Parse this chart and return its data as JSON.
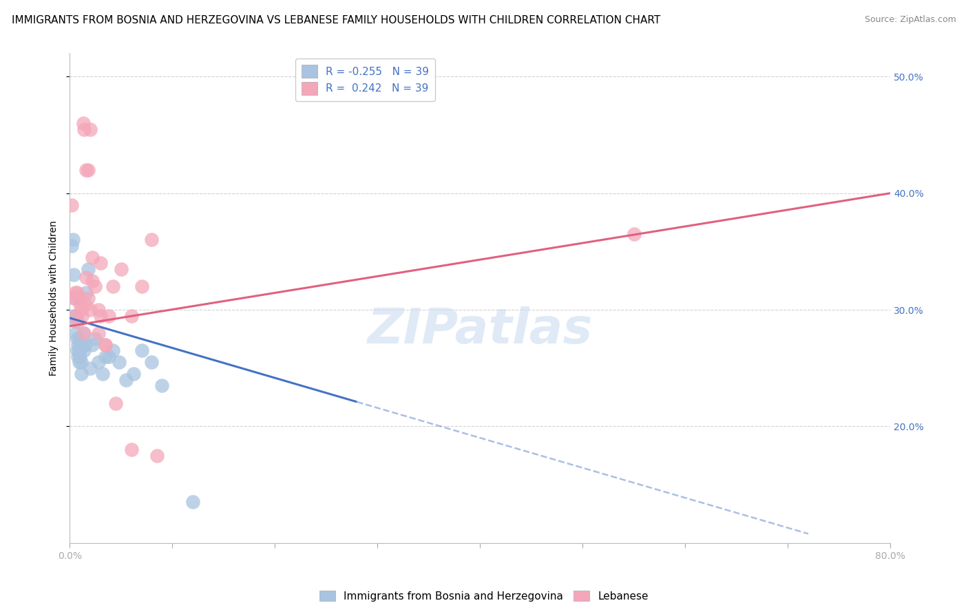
{
  "title": "IMMIGRANTS FROM BOSNIA AND HERZEGOVINA VS LEBANESE FAMILY HOUSEHOLDS WITH CHILDREN CORRELATION CHART",
  "source": "Source: ZipAtlas.com",
  "ylabel": "Family Households with Children",
  "xlim": [
    0.0,
    0.8
  ],
  "ylim": [
    0.1,
    0.52
  ],
  "yticks": [
    0.2,
    0.3,
    0.4,
    0.5
  ],
  "ytick_labels": [
    "20.0%",
    "30.0%",
    "40.0%",
    "50.0%"
  ],
  "xticks": [
    0.0,
    0.1,
    0.2,
    0.3,
    0.4,
    0.5,
    0.6,
    0.7,
    0.8
  ],
  "xtick_labels": [
    "0.0%",
    "",
    "",
    "",
    "",
    "",
    "",
    "",
    "80.0%"
  ],
  "R_bosnia": -0.255,
  "R_lebanese": 0.242,
  "N_bosnia": 39,
  "N_lebanese": 39,
  "bosnia_color": "#a8c4e0",
  "lebanese_color": "#f4a7b9",
  "bosnia_line_color": "#4472c4",
  "lebanese_line_color": "#e06080",
  "bosnia_x": [
    0.002,
    0.003,
    0.004,
    0.004,
    0.005,
    0.005,
    0.006,
    0.006,
    0.007,
    0.007,
    0.008,
    0.008,
    0.009,
    0.009,
    0.01,
    0.01,
    0.011,
    0.011,
    0.012,
    0.013,
    0.014,
    0.015,
    0.016,
    0.018,
    0.02,
    0.022,
    0.025,
    0.028,
    0.032,
    0.035,
    0.038,
    0.042,
    0.048,
    0.055,
    0.062,
    0.07,
    0.08,
    0.09,
    0.12
  ],
  "bosnia_y": [
    0.355,
    0.36,
    0.33,
    0.295,
    0.31,
    0.29,
    0.28,
    0.295,
    0.275,
    0.265,
    0.26,
    0.27,
    0.255,
    0.265,
    0.275,
    0.26,
    0.255,
    0.245,
    0.27,
    0.28,
    0.265,
    0.27,
    0.315,
    0.335,
    0.25,
    0.27,
    0.275,
    0.255,
    0.245,
    0.26,
    0.26,
    0.265,
    0.255,
    0.24,
    0.245,
    0.265,
    0.255,
    0.235,
    0.135
  ],
  "lebanese_x": [
    0.002,
    0.004,
    0.005,
    0.006,
    0.007,
    0.008,
    0.009,
    0.01,
    0.011,
    0.012,
    0.014,
    0.015,
    0.016,
    0.018,
    0.02,
    0.022,
    0.025,
    0.028,
    0.03,
    0.035,
    0.038,
    0.042,
    0.05,
    0.06,
    0.07,
    0.085,
    0.014,
    0.018,
    0.022,
    0.028,
    0.035,
    0.045,
    0.06,
    0.08,
    0.55,
    0.013,
    0.016,
    0.02,
    0.03
  ],
  "lebanese_y": [
    0.39,
    0.31,
    0.315,
    0.295,
    0.315,
    0.29,
    0.31,
    0.305,
    0.3,
    0.295,
    0.28,
    0.305,
    0.328,
    0.31,
    0.3,
    0.325,
    0.32,
    0.3,
    0.295,
    0.27,
    0.295,
    0.32,
    0.335,
    0.295,
    0.32,
    0.175,
    0.455,
    0.42,
    0.345,
    0.28,
    0.27,
    0.22,
    0.18,
    0.36,
    0.365,
    0.46,
    0.42,
    0.455,
    0.34
  ],
  "bos_line_x0": 0.0,
  "bos_line_y0": 0.293,
  "bos_line_x1_solid": 0.28,
  "bos_line_y1_solid": 0.221,
  "bos_line_x1_dashed": 0.72,
  "bos_line_y1_dashed": 0.115,
  "leb_line_x0": 0.0,
  "leb_line_y0": 0.286,
  "leb_line_x1": 0.8,
  "leb_line_y1": 0.4,
  "watermark": "ZIPatlas",
  "title_fontsize": 11,
  "axis_label_fontsize": 10,
  "tick_fontsize": 10,
  "legend_fontsize": 11,
  "source_fontsize": 9
}
